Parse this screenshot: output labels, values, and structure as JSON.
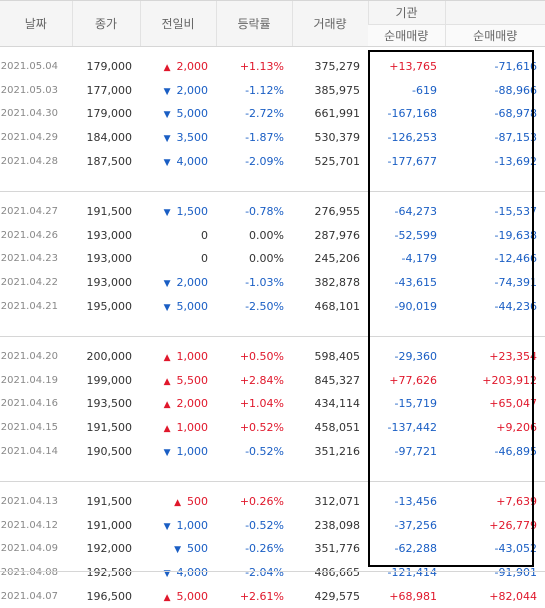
{
  "headers": {
    "date": "날짜",
    "close": "종가",
    "diff": "전일비",
    "rate": "등락률",
    "volume": "거래량",
    "institution_group": "기관",
    "institution_net": "순매매량",
    "foreign_net": "순매매량"
  },
  "groups": [
    [
      {
        "date": "2021.05.04",
        "close": "179,000",
        "dir": "up",
        "diff": "2,000",
        "rate": "+1.13%",
        "volume": "375,279",
        "inst": "+13,765",
        "foreign": "-71,616"
      },
      {
        "date": "2021.05.03",
        "close": "177,000",
        "dir": "down",
        "diff": "2,000",
        "rate": "-1.12%",
        "volume": "385,975",
        "inst": "-619",
        "foreign": "-88,966"
      },
      {
        "date": "2021.04.30",
        "close": "179,000",
        "dir": "down",
        "diff": "5,000",
        "rate": "-2.72%",
        "volume": "661,991",
        "inst": "-167,168",
        "foreign": "-68,978"
      },
      {
        "date": "2021.04.29",
        "close": "184,000",
        "dir": "down",
        "diff": "3,500",
        "rate": "-1.87%",
        "volume": "530,379",
        "inst": "-126,253",
        "foreign": "-87,153"
      },
      {
        "date": "2021.04.28",
        "close": "187,500",
        "dir": "down",
        "diff": "4,000",
        "rate": "-2.09%",
        "volume": "525,701",
        "inst": "-177,677",
        "foreign": "-13,692"
      }
    ],
    [
      {
        "date": "2021.04.27",
        "close": "191,500",
        "dir": "down",
        "diff": "1,500",
        "rate": "-0.78%",
        "volume": "276,955",
        "inst": "-64,273",
        "foreign": "-15,537"
      },
      {
        "date": "2021.04.26",
        "close": "193,000",
        "dir": "flat",
        "diff": "0",
        "rate": "0.00%",
        "volume": "287,976",
        "inst": "-52,599",
        "foreign": "-19,638"
      },
      {
        "date": "2021.04.23",
        "close": "193,000",
        "dir": "flat",
        "diff": "0",
        "rate": "0.00%",
        "volume": "245,206",
        "inst": "-4,179",
        "foreign": "-12,466"
      },
      {
        "date": "2021.04.22",
        "close": "193,000",
        "dir": "down",
        "diff": "2,000",
        "rate": "-1.03%",
        "volume": "382,878",
        "inst": "-43,615",
        "foreign": "-74,391"
      },
      {
        "date": "2021.04.21",
        "close": "195,000",
        "dir": "down",
        "diff": "5,000",
        "rate": "-2.50%",
        "volume": "468,101",
        "inst": "-90,019",
        "foreign": "-44,236"
      }
    ],
    [
      {
        "date": "2021.04.20",
        "close": "200,000",
        "dir": "up",
        "diff": "1,000",
        "rate": "+0.50%",
        "volume": "598,405",
        "inst": "-29,360",
        "foreign": "+23,354"
      },
      {
        "date": "2021.04.19",
        "close": "199,000",
        "dir": "up",
        "diff": "5,500",
        "rate": "+2.84%",
        "volume": "845,327",
        "inst": "+77,626",
        "foreign": "+203,912"
      },
      {
        "date": "2021.04.16",
        "close": "193,500",
        "dir": "up",
        "diff": "2,000",
        "rate": "+1.04%",
        "volume": "434,114",
        "inst": "-15,719",
        "foreign": "+65,047"
      },
      {
        "date": "2021.04.15",
        "close": "191,500",
        "dir": "up",
        "diff": "1,000",
        "rate": "+0.52%",
        "volume": "458,051",
        "inst": "-137,442",
        "foreign": "+9,206"
      },
      {
        "date": "2021.04.14",
        "close": "190,500",
        "dir": "down",
        "diff": "1,000",
        "rate": "-0.52%",
        "volume": "351,216",
        "inst": "-97,721",
        "foreign": "-46,895"
      }
    ],
    [
      {
        "date": "2021.04.13",
        "close": "191,500",
        "dir": "up",
        "diff": "500",
        "rate": "+0.26%",
        "volume": "312,071",
        "inst": "-13,456",
        "foreign": "+7,639"
      },
      {
        "date": "2021.04.12",
        "close": "191,000",
        "dir": "down",
        "diff": "1,000",
        "rate": "-0.52%",
        "volume": "238,098",
        "inst": "-37,256",
        "foreign": "+26,779"
      },
      {
        "date": "2021.04.09",
        "close": "192,000",
        "dir": "down",
        "diff": "500",
        "rate": "-0.26%",
        "volume": "351,776",
        "inst": "-62,288",
        "foreign": "-43,052"
      },
      {
        "date": "2021.04.08",
        "close": "192,500",
        "dir": "down",
        "diff": "4,000",
        "rate": "-2.04%",
        "volume": "486,665",
        "inst": "-121,414",
        "foreign": "-91,901"
      },
      {
        "date": "2021.04.07",
        "close": "196,500",
        "dir": "up",
        "diff": "5,000",
        "rate": "+2.61%",
        "volume": "429,575",
        "inst": "+68,981",
        "foreign": "+82,044"
      }
    ]
  ],
  "icons": {
    "up": "triangle-up-icon",
    "down": "triangle-down-icon"
  },
  "colors": {
    "up": "#e0172b",
    "down": "#1a5ec4",
    "highlight_box": "#000000"
  }
}
